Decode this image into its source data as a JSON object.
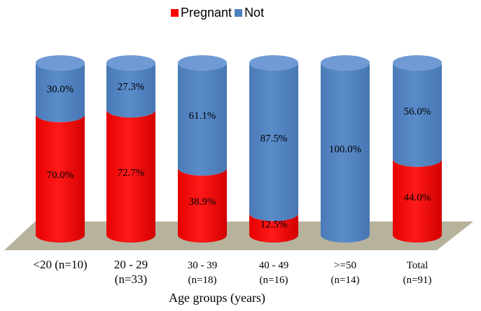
{
  "chart_data": {
    "type": "bar",
    "stacked": true,
    "percent": true,
    "style": "3d-cylinder",
    "categories": [
      {
        "line1": "<20 (n=10)",
        "line2": ""
      },
      {
        "line1": "20 - 29",
        "line2": "(n=33)"
      },
      {
        "line1": "30 - 39",
        "line2": "(n=18)"
      },
      {
        "line1": "40 - 49",
        "line2": "(n=16)"
      },
      {
        "line1": ">=50",
        "line2": "(n=14)"
      },
      {
        "line1": "Total",
        "line2": "(n=91)"
      }
    ],
    "series": [
      {
        "name": "Pregnant",
        "color": "#ff0000",
        "values": [
          70.0,
          72.7,
          38.9,
          12.5,
          0.0,
          44.0
        ],
        "labels": [
          "70.0%",
          "72.7%",
          "38.9%",
          "12.5%",
          "",
          "44.0%"
        ]
      },
      {
        "name": "Not",
        "color": "#4f81bd",
        "values": [
          30.0,
          27.3,
          61.1,
          87.5,
          100.0,
          56.0
        ],
        "labels": [
          "30.0%",
          "27.3%",
          "61.1%",
          "87.5%",
          "100.0%",
          "56.0%"
        ]
      }
    ],
    "xlabel": "Age groups (years)",
    "ylabel": "",
    "ylim": [
      0,
      100
    ],
    "legend_position": "top",
    "floor_color": "#b7b29c"
  }
}
